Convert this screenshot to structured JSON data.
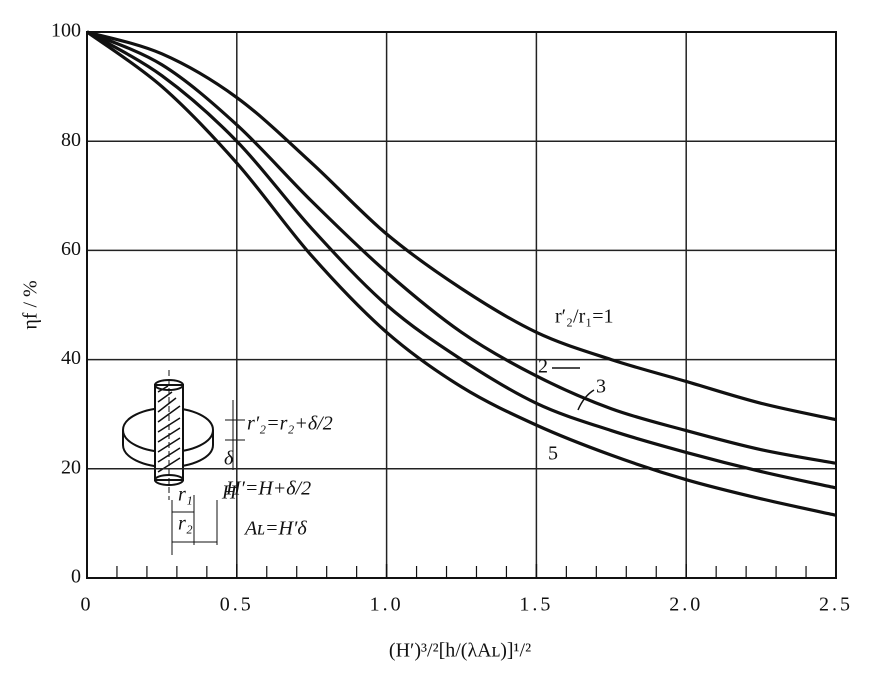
{
  "chart_data": {
    "type": "line",
    "x_label": "(H′)³/²[h/(λAʟ)]¹/²",
    "y_label": "ηf / %",
    "x": [
      0,
      0.25,
      0.5,
      0.75,
      1.0,
      1.25,
      1.5,
      1.75,
      2.0,
      2.25,
      2.5
    ],
    "series": [
      {
        "name": "r′₂/r₁=1",
        "color": "#111111",
        "values": [
          100,
          96,
          88,
          76,
          63,
          53,
          45,
          40,
          36,
          32,
          29
        ]
      },
      {
        "name": "2",
        "color": "#111111",
        "values": [
          100,
          94,
          83,
          69,
          56,
          45,
          37,
          31,
          27,
          23.5,
          21
        ]
      },
      {
        "name": "3",
        "color": "#111111",
        "values": [
          100,
          92,
          80,
          64,
          50,
          40,
          32,
          27,
          23,
          19.5,
          16.5
        ]
      },
      {
        "name": "5",
        "color": "#111111",
        "values": [
          100,
          90,
          76,
          59,
          45,
          35,
          28,
          22.5,
          18,
          14.5,
          11.5
        ]
      }
    ],
    "xlim": [
      0,
      2.5
    ],
    "ylim": [
      0,
      100
    ],
    "xticks": [
      0,
      0.5,
      {
        "value": 1,
        "label": "1.0"
      },
      1.5,
      {
        "value": 2,
        "label": "2.0"
      },
      2.5
    ],
    "xminorticks": [
      0.1,
      0.2,
      0.3,
      0.4,
      0.6,
      0.7,
      0.8,
      0.9,
      1.1,
      1.2,
      1.3,
      1.4,
      1.6,
      1.7,
      1.8,
      1.9,
      2.1,
      2.2,
      2.3,
      2.4
    ],
    "yticks": [
      0,
      20,
      40,
      60,
      80,
      100
    ],
    "grid": true,
    "inset_labels": [
      "r′₂=r₂+δ/2",
      "δ",
      "H′=H+δ/2",
      "H",
      "Aʟ=H′δ",
      "r₁",
      "r₂"
    ]
  }
}
